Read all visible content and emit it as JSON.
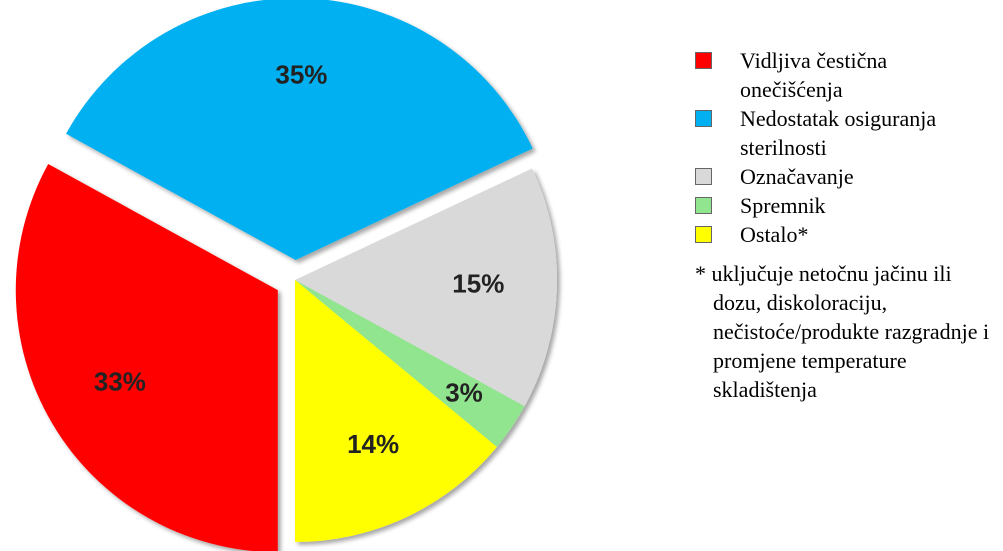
{
  "chart_data": {
    "type": "pie",
    "categories": [
      "Vidljiva čestična onečišćenja",
      "Nedostatak osiguranja sterilnosti",
      "Označavanje",
      "Spremnik",
      "Ostalo*"
    ],
    "values": [
      33,
      35,
      15,
      3,
      14
    ],
    "value_labels": [
      "33%",
      "35%",
      "15%",
      "3%",
      "14%"
    ],
    "colors": [
      "#ff0000",
      "#00b0f0",
      "#d9d9d9",
      "#92e58f",
      "#ffff00"
    ],
    "explode": [
      true,
      true,
      false,
      false,
      false
    ],
    "legend": "right",
    "annotation": "* uključuje netočnu jačinu ili dozu, diskoloraciju, nečistoće/produkte razgradnje i promjene temperature skladištenja"
  }
}
